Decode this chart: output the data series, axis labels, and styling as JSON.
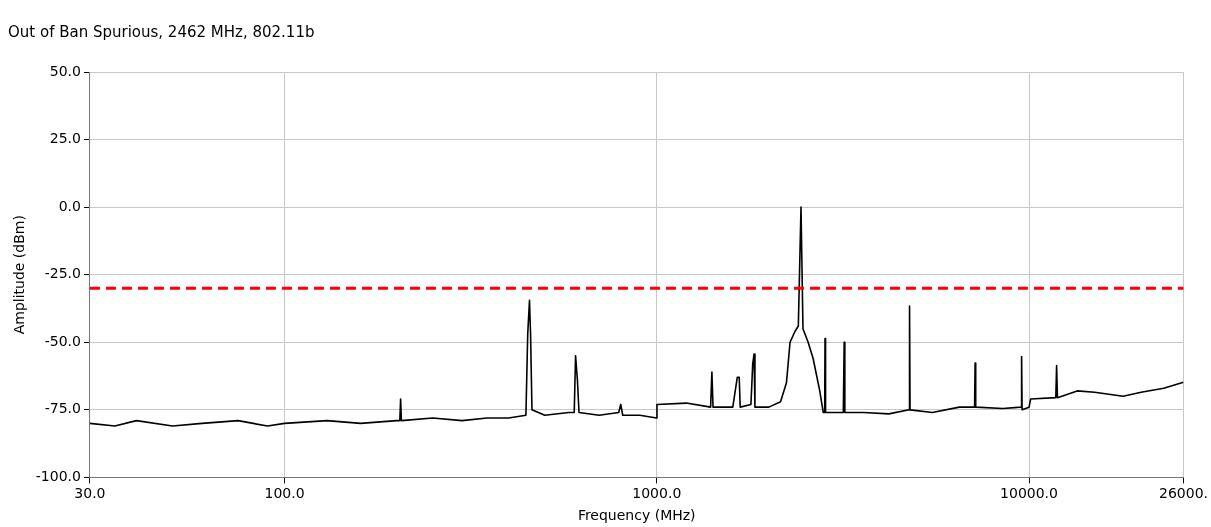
{
  "chart_data": {
    "type": "line",
    "title": "Out of Ban Spurious, 2462 MHz, 802.11b",
    "xlabel": "Frequency (MHz)",
    "ylabel": "Amplitude (dBm)",
    "log": "x",
    "grid": true,
    "legend": false,
    "marker": "none",
    "line_style": "solid",
    "xlim": [
      30,
      26000
    ],
    "xticks": [
      {
        "value": 30,
        "label": "30.0"
      },
      {
        "value": 100,
        "label": "100.0"
      },
      {
        "value": 1000,
        "label": "1000.0"
      },
      {
        "value": 10000,
        "label": "10000.0"
      },
      {
        "value": 26000,
        "label": "26000."
      }
    ],
    "ylim": [
      -100,
      50
    ],
    "yticks": [
      {
        "value": -100,
        "label": "-100.0"
      },
      {
        "value": -75,
        "label": "-75.0"
      },
      {
        "value": -50,
        "label": "-50.0"
      },
      {
        "value": -25,
        "label": "-25.0"
      },
      {
        "value": 0,
        "label": "0.0"
      },
      {
        "value": 25,
        "label": "25.0"
      },
      {
        "value": 50,
        "label": "50.0"
      }
    ],
    "ref_lines": [
      {
        "axis": "y",
        "value": -30,
        "color": "#ff0000",
        "line_style": "dashed"
      }
    ],
    "x": [
      30,
      35,
      40,
      50,
      60,
      75,
      90,
      100,
      130,
      160,
      200,
      204,
      205,
      206,
      250,
      300,
      350,
      400,
      445,
      450,
      455,
      458,
      462,
      500,
      580,
      600,
      605,
      612,
      618,
      700,
      790,
      800,
      810,
      900,
      999,
      1001,
      1200,
      1395,
      1406,
      1416,
      1600,
      1645,
      1665,
      1675,
      1790,
      1810,
      1825,
      1835,
      2000,
      2150,
      2230,
      2280,
      2350,
      2400,
      2440,
      2470,
      2550,
      2630,
      2740,
      2800,
      2825,
      2831,
      2840,
      3000,
      3170,
      3187,
      3200,
      3600,
      4200,
      4760,
      4775,
      4790,
      5500,
      6500,
      7140,
      7164,
      7190,
      8500,
      9520,
      9550,
      9580,
      10000,
      10100,
      11800,
      11860,
      11920,
      13470,
      15000,
      17900,
      20000,
      23000,
      26000
    ],
    "series": [
      {
        "color": "#000000",
        "values": [
          -80,
          -81,
          -79,
          -81,
          -80,
          -79,
          -81,
          -80,
          -79,
          -80,
          -79,
          -79,
          -71,
          -79,
          -78,
          -79,
          -78,
          -78,
          -77,
          -47,
          -34.5,
          -47,
          -75,
          -77,
          -76,
          -76,
          -55,
          -64,
          -76,
          -77,
          -76,
          -73,
          -77,
          -77,
          -78,
          -73,
          -72.5,
          -74,
          -61,
          -74,
          -74,
          -63,
          -63,
          -74,
          -73,
          -58,
          -54.4,
          -74,
          -74,
          -72,
          -65,
          -50,
          -46,
          -44,
          0,
          -45,
          -50,
          -56,
          -68,
          -76,
          -76,
          -48.6,
          -76,
          -76,
          -76,
          -50,
          -76,
          -76,
          -76.5,
          -75,
          -36.6,
          -75,
          -76,
          -74,
          -74,
          -57.7,
          -74,
          -74.5,
          -74,
          -55.3,
          -75,
          -74,
          -71,
          -70.5,
          -58.6,
          -70.5,
          -68,
          -68.5,
          -70,
          -68.5,
          -67,
          -64.8
        ]
      }
    ]
  }
}
